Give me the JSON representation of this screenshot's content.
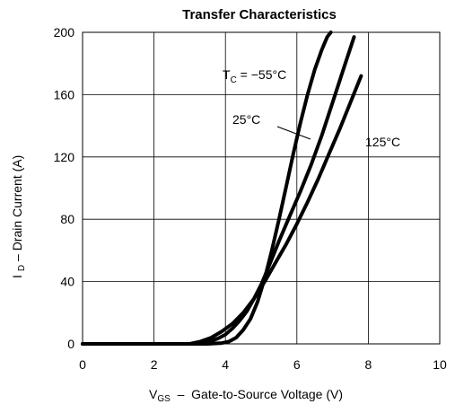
{
  "chart_data": {
    "type": "line",
    "title": "Transfer Characteristics",
    "xlabel": {
      "main": "V",
      "sub": "GS",
      "rest": "  –  Gate-to-Source Voltage (V)"
    },
    "ylabel": {
      "main": "I",
      "sub": "D",
      "rest": " – Drain Current (A)"
    },
    "xlim": [
      0,
      10
    ],
    "ylim": [
      0,
      200
    ],
    "xticks": [
      0,
      2,
      4,
      6,
      8,
      10
    ],
    "yticks": [
      0,
      40,
      80,
      120,
      160,
      200
    ],
    "grid": true,
    "series": [
      {
        "name": "T_C = −55°C",
        "points": [
          [
            0,
            0
          ],
          [
            3.5,
            0
          ],
          [
            3.9,
            0.5
          ],
          [
            4.1,
            1.5
          ],
          [
            4.3,
            4
          ],
          [
            4.5,
            9
          ],
          [
            4.7,
            16
          ],
          [
            4.9,
            27
          ],
          [
            5.1,
            42
          ],
          [
            5.3,
            60
          ],
          [
            5.5,
            80
          ],
          [
            5.7,
            101
          ],
          [
            5.9,
            122
          ],
          [
            6.1,
            142
          ],
          [
            6.3,
            160
          ],
          [
            6.5,
            176
          ],
          [
            6.7,
            189
          ],
          [
            6.85,
            197
          ],
          [
            6.95,
            200
          ]
        ]
      },
      {
        "name": "25°C",
        "points": [
          [
            0,
            0
          ],
          [
            3.2,
            0
          ],
          [
            3.5,
            1
          ],
          [
            3.8,
            3.5
          ],
          [
            4.0,
            6
          ],
          [
            4.2,
            10
          ],
          [
            4.4,
            15
          ],
          [
            4.6,
            21
          ],
          [
            4.8,
            29
          ],
          [
            5.0,
            38
          ],
          [
            5.2,
            49
          ],
          [
            5.5,
            66
          ],
          [
            5.8,
            82
          ],
          [
            6.1,
            98
          ],
          [
            6.4,
            115
          ],
          [
            6.7,
            134
          ],
          [
            7.0,
            155
          ],
          [
            7.3,
            176
          ],
          [
            7.6,
            197
          ]
        ]
      },
      {
        "name": "125°C",
        "points": [
          [
            0,
            0
          ],
          [
            3.0,
            0
          ],
          [
            3.3,
            1.5
          ],
          [
            3.6,
            4
          ],
          [
            3.9,
            8
          ],
          [
            4.2,
            13
          ],
          [
            4.5,
            20
          ],
          [
            4.8,
            29
          ],
          [
            5.1,
            40
          ],
          [
            5.4,
            52
          ],
          [
            5.7,
            64
          ],
          [
            6.0,
            77
          ],
          [
            6.3,
            91
          ],
          [
            6.6,
            106
          ],
          [
            6.9,
            122
          ],
          [
            7.2,
            138
          ],
          [
            7.5,
            155
          ],
          [
            7.8,
            172
          ]
        ]
      }
    ],
    "annotations": [
      {
        "label_main": "T",
        "label_sub": "C",
        "label_rest": " = −55°C"
      },
      {
        "label": "25°C"
      },
      {
        "label": "125°C"
      }
    ],
    "line_color": "#000000",
    "grid_color": "#000000"
  }
}
